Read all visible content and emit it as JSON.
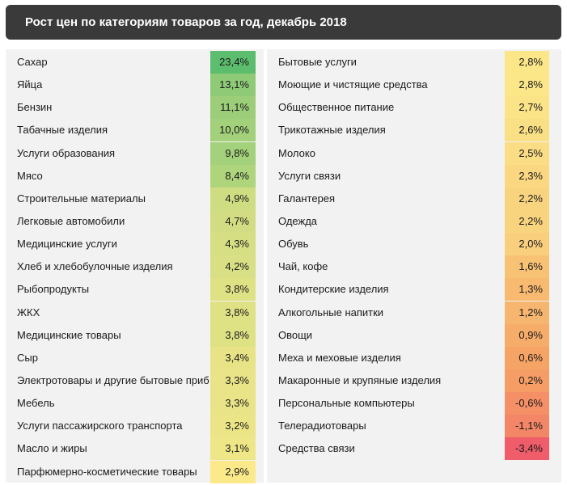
{
  "title": "Рост цен по категориям товаров за год, декабрь 2018",
  "colors": {
    "max_green": "#5dbd6e",
    "mid_yellow": "#fbe98a",
    "orange": "#f6a465",
    "min_red": "#ee5d69"
  },
  "chart_data": {
    "type": "table",
    "title": "Рост цен по категориям товаров за год, декабрь 2018",
    "columns": [
      {
        "rows": [
          {
            "category": "Сахар",
            "value": 23.4,
            "label": "23,4%"
          },
          {
            "category": "Яйца",
            "value": 13.1,
            "label": "13,1%"
          },
          {
            "category": "Бензин",
            "value": 11.1,
            "label": "11,1%"
          },
          {
            "category": "Табачные изделия",
            "value": 10.0,
            "label": "10,0%"
          },
          {
            "category": "Услуги образования",
            "value": 9.8,
            "label": "9,8%"
          },
          {
            "category": "Мясо",
            "value": 8.4,
            "label": "8,4%"
          },
          {
            "category": "Строительные материалы",
            "value": 4.9,
            "label": "4,9%"
          },
          {
            "category": "Легковые автомобили",
            "value": 4.7,
            "label": "4,7%"
          },
          {
            "category": "Медицинские услуги",
            "value": 4.3,
            "label": "4,3%"
          },
          {
            "category": "Хлеб и хлебобулочные изделия",
            "value": 4.2,
            "label": "4,2%"
          },
          {
            "category": "Рыбопродукты",
            "value": 3.8,
            "label": "3,8%"
          },
          {
            "category": "ЖКХ",
            "value": 3.8,
            "label": "3,8%"
          },
          {
            "category": "Медицинские товары",
            "value": 3.8,
            "label": "3,8%"
          },
          {
            "category": "Сыр",
            "value": 3.4,
            "label": "3,4%"
          },
          {
            "category": "Электротовары и другие бытовые приб",
            "value": 3.3,
            "label": "3,3%"
          },
          {
            "category": "Мебель",
            "value": 3.3,
            "label": "3,3%"
          },
          {
            "category": "Услуги пассажирского транспорта",
            "value": 3.2,
            "label": "3,2%"
          },
          {
            "category": "Масло и жиры",
            "value": 3.1,
            "label": "3,1%"
          },
          {
            "category": "Парфюмерно-косметические товары",
            "value": 2.9,
            "label": "2,9%"
          }
        ]
      },
      {
        "rows": [
          {
            "category": "Бытовые услуги",
            "value": 2.8,
            "label": "2,8%"
          },
          {
            "category": "Моющие и чистящие средства",
            "value": 2.8,
            "label": "2,8%"
          },
          {
            "category": "Общественное питание",
            "value": 2.7,
            "label": "2,7%"
          },
          {
            "category": "Трикотажные изделия",
            "value": 2.6,
            "label": "2,6%"
          },
          {
            "category": "Молоко",
            "value": 2.5,
            "label": "2,5%"
          },
          {
            "category": "Услуги связи",
            "value": 2.3,
            "label": "2,3%"
          },
          {
            "category": "Галантерея",
            "value": 2.2,
            "label": "2,2%"
          },
          {
            "category": "Одежда",
            "value": 2.2,
            "label": "2,2%"
          },
          {
            "category": "Обувь",
            "value": 2.0,
            "label": "2,0%"
          },
          {
            "category": "Чай, кофе",
            "value": 1.6,
            "label": "1,6%"
          },
          {
            "category": "Кондитерские изделия",
            "value": 1.3,
            "label": "1,3%"
          },
          {
            "category": "Алкогольные напитки",
            "value": 1.2,
            "label": "1,2%"
          },
          {
            "category": "Овощи",
            "value": 0.9,
            "label": "0,9%"
          },
          {
            "category": "Меха и меховые изделия",
            "value": 0.6,
            "label": "0,6%"
          },
          {
            "category": "Макаронные и крупяные изделия",
            "value": 0.2,
            "label": "0,2%"
          },
          {
            "category": "Персональные компьютеры",
            "value": -0.6,
            "label": "-0,6%"
          },
          {
            "category": "Телерадиотовары",
            "value": -1.1,
            "label": "-1,1%"
          },
          {
            "category": "Средства связи",
            "value": -3.4,
            "label": "-3,4%"
          }
        ]
      }
    ]
  }
}
